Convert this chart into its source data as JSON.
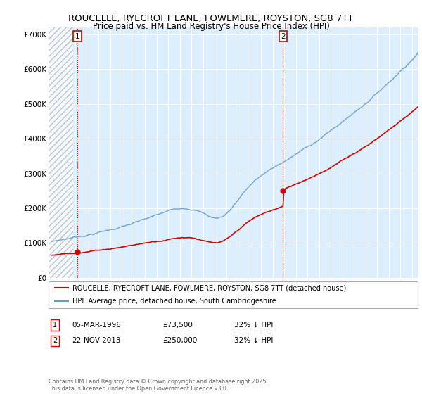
{
  "title": "ROUCELLE, RYECROFT LANE, FOWLMERE, ROYSTON, SG8 7TT",
  "subtitle": "Price paid vs. HM Land Registry's House Price Index (HPI)",
  "xlim_start": 1993.7,
  "xlim_end": 2025.5,
  "ylim": [
    0,
    720000
  ],
  "yticks": [
    0,
    100000,
    200000,
    300000,
    400000,
    500000,
    600000,
    700000
  ],
  "ytick_labels": [
    "£0",
    "£100K",
    "£200K",
    "£300K",
    "£400K",
    "£500K",
    "£600K",
    "£700K"
  ],
  "background_color": "#ffffff",
  "plot_bg_color": "#ddeeff",
  "grid_color": "#ffffff",
  "hatch_end_year": 1995.8,
  "ann1_x": 1996.18,
  "ann1_y": 73500,
  "ann2_x": 2013.9,
  "ann2_y": 250000,
  "legend_entry1": "ROUCELLE, RYECROFT LANE, FOWLMERE, ROYSTON, SG8 7TT (detached house)",
  "legend_entry2": "HPI: Average price, detached house, South Cambridgeshire",
  "table_row1": [
    "1",
    "05-MAR-1996",
    "£73,500",
    "32% ↓ HPI"
  ],
  "table_row2": [
    "2",
    "22-NOV-2013",
    "£250,000",
    "32% ↓ HPI"
  ],
  "footer": "Contains HM Land Registry data © Crown copyright and database right 2025.\nThis data is licensed under the Open Government Licence v3.0.",
  "line_color_red": "#cc0000",
  "hpi_color": "#6699cc",
  "ann_box_color": "#cc0000"
}
